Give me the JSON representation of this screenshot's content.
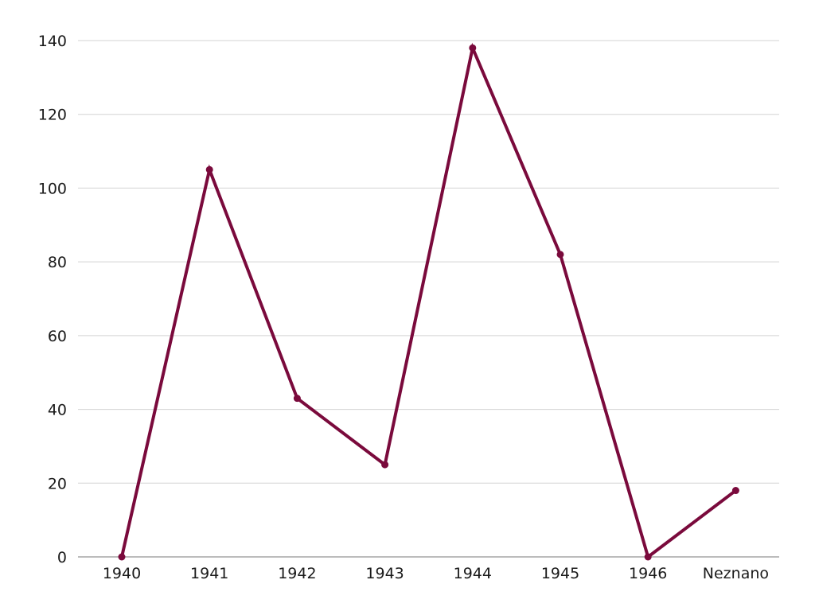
{
  "chart_data": {
    "type": "line",
    "title": "",
    "xlabel": "",
    "ylabel": "",
    "categories": [
      "1940",
      "1941",
      "1942",
      "1943",
      "1944",
      "1945",
      "1946",
      "Neznano"
    ],
    "series": [
      {
        "values": [
          0,
          105,
          43,
          25,
          138,
          82,
          0,
          18
        ]
      }
    ],
    "ylim": [
      0,
      140
    ],
    "yticks": [
      0,
      20,
      40,
      60,
      80,
      100,
      120,
      140
    ],
    "grid": "horizontal",
    "legend": "none",
    "colors": {
      "series": "#7a0a3c",
      "grid": "#d3d3d3",
      "baseline": "#a6a6a6",
      "text": "#1a1a1a"
    }
  }
}
